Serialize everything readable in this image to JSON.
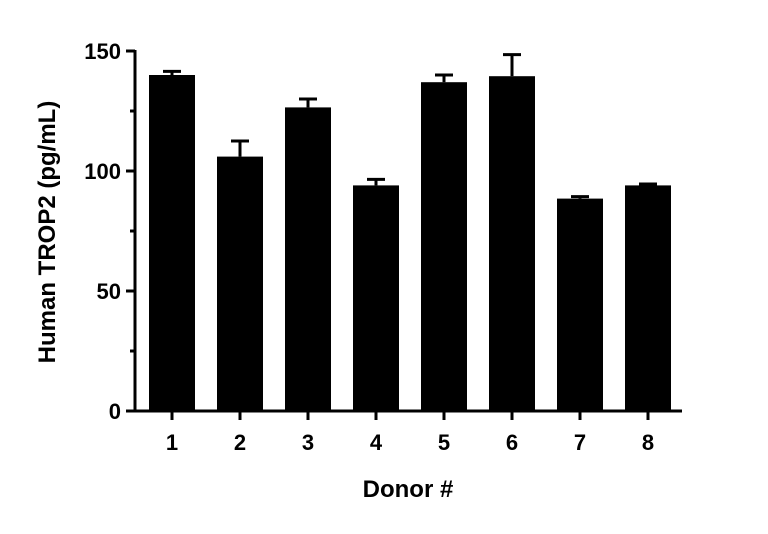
{
  "chart_data": {
    "type": "bar",
    "title": "",
    "xlabel": "Donor #",
    "ylabel": "Human TROP2 (pg/mL)",
    "categories": [
      "1",
      "2",
      "3",
      "4",
      "5",
      "6",
      "7",
      "8"
    ],
    "values": [
      140,
      106,
      126.5,
      94,
      137,
      139.5,
      88.5,
      94
    ],
    "errors": [
      1.5,
      6.5,
      3.5,
      2.5,
      3,
      9,
      0.8,
      0.6
    ],
    "ylim": [
      0,
      150
    ],
    "yticks": [
      0,
      50,
      100,
      150
    ],
    "ytick_labels": [
      "0",
      "50",
      "100",
      "150"
    ],
    "minor_yticks": [
      25,
      75,
      125
    ],
    "grid": false,
    "bar_color": "#000000"
  }
}
